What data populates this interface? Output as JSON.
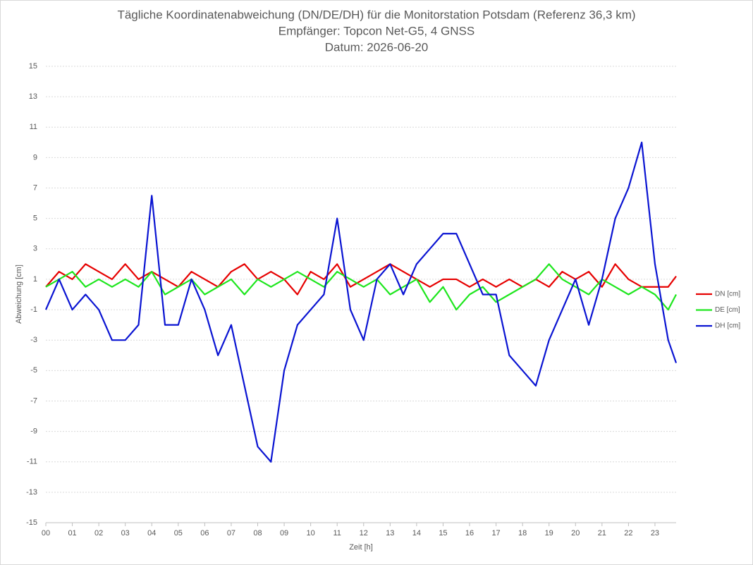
{
  "chart_data": {
    "type": "line",
    "title": [
      "Tägliche Koordinatenabweichung (DN/DE/DH) für die Monitorstation Potsdam (Referenz 36,3 km)",
      "Empfänger: Topcon Net-G5, 4 GNSS",
      "Datum: 2026-06-20"
    ],
    "x_label": "Zeit [h]",
    "y_label": "Abweichung [cm]",
    "x": [
      0,
      0.5,
      1,
      1.5,
      2,
      2.5,
      3,
      3.5,
      4,
      4.5,
      5,
      5.5,
      6,
      6.5,
      7,
      7.5,
      8,
      8.5,
      9,
      9.5,
      10,
      10.5,
      11,
      11.5,
      12,
      12.5,
      13,
      13.5,
      14,
      14.5,
      15,
      15.5,
      16,
      16.5,
      17,
      17.5,
      18,
      18.5,
      19,
      19.5,
      20,
      20.5,
      21,
      21.5,
      22,
      22.5,
      23,
      23.5,
      23.8
    ],
    "series": [
      {
        "name": "DN [cm]",
        "color": "#e60000",
        "values": [
          0.5,
          1.5,
          1,
          2,
          1.5,
          1,
          2,
          1,
          1.5,
          1,
          0.5,
          1.5,
          1,
          0.5,
          1.5,
          2,
          1,
          1.5,
          1,
          0,
          1.5,
          1,
          2,
          0.5,
          1,
          1.5,
          2,
          1.5,
          1,
          0.5,
          1,
          1,
          0.5,
          1,
          0.5,
          1,
          0.5,
          1,
          0.5,
          1.5,
          1,
          1.5,
          0.5,
          2,
          1,
          0.5,
          0.5,
          0.5,
          1.2
        ]
      },
      {
        "name": "DE [cm]",
        "color": "#1ee61e",
        "values": [
          0.5,
          1,
          1.5,
          0.5,
          1,
          0.5,
          1,
          0.5,
          1.5,
          0,
          0.5,
          1,
          0,
          0.5,
          1,
          0,
          1,
          0.5,
          1,
          1.5,
          1,
          0.5,
          1.5,
          1,
          0.5,
          1,
          0,
          0.5,
          1,
          -0.5,
          0.5,
          -1,
          0,
          0.5,
          -0.5,
          0,
          0.5,
          1,
          2,
          1,
          0.5,
          0,
          1,
          0.5,
          0,
          0.5,
          0,
          -1,
          0
        ]
      },
      {
        "name": "DH [cm]",
        "color": "#0a14d2",
        "values": [
          -1,
          1,
          -1,
          0,
          -1,
          -3,
          -3,
          -2,
          6.5,
          -2,
          -2,
          1,
          -1,
          -4,
          -2,
          -6,
          -10,
          -11,
          -5,
          -2,
          -1,
          0,
          5,
          -1,
          -3,
          1,
          2,
          0,
          2,
          3,
          4,
          4,
          2,
          0,
          0,
          -4,
          -5,
          -6,
          -3,
          -1,
          1,
          -2,
          1,
          5,
          7,
          10,
          2,
          -3,
          -4.5
        ]
      }
    ],
    "xlim": [
      0,
      23.8
    ],
    "xticks": [
      {
        "value": 0,
        "label": "00"
      },
      {
        "value": 1,
        "label": "01"
      },
      {
        "value": 2,
        "label": "02"
      },
      {
        "value": 3,
        "label": "03"
      },
      {
        "value": 4,
        "label": "04"
      },
      {
        "value": 5,
        "label": "05"
      },
      {
        "value": 6,
        "label": "06"
      },
      {
        "value": 7,
        "label": "07"
      },
      {
        "value": 8,
        "label": "08"
      },
      {
        "value": 9,
        "label": "09"
      },
      {
        "value": 10,
        "label": "10"
      },
      {
        "value": 11,
        "label": "11"
      },
      {
        "value": 12,
        "label": "12"
      },
      {
        "value": 13,
        "label": "13"
      },
      {
        "value": 14,
        "label": "14"
      },
      {
        "value": 15,
        "label": "15"
      },
      {
        "value": 16,
        "label": "16"
      },
      {
        "value": 17,
        "label": "17"
      },
      {
        "value": 18,
        "label": "18"
      },
      {
        "value": 19,
        "label": "19"
      },
      {
        "value": 20,
        "label": "20"
      },
      {
        "value": 21,
        "label": "21"
      },
      {
        "value": 22,
        "label": "22"
      },
      {
        "value": 23,
        "label": "23"
      }
    ],
    "ylim": [
      -15,
      15
    ],
    "yticks": [
      -15,
      -13,
      -11,
      -9,
      -7,
      -5,
      -3,
      -1,
      1,
      3,
      5,
      7,
      9,
      11,
      13,
      15
    ],
    "grid": true,
    "legend": "right"
  }
}
